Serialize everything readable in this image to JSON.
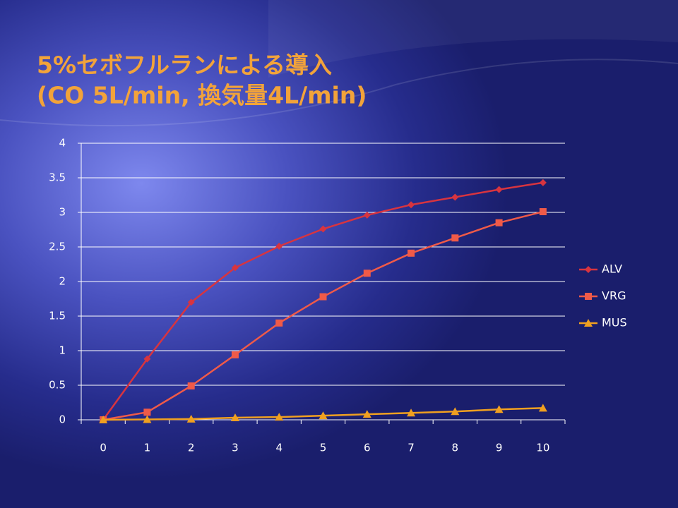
{
  "chart_data": {
    "type": "line",
    "title": [
      "5%セボフルランによる導入",
      "(CO 5L/min, 換気量4L/min)"
    ],
    "categories": [
      "0",
      "1",
      "2",
      "3",
      "4",
      "5",
      "6",
      "7",
      "8",
      "9",
      "10"
    ],
    "series": [
      {
        "name": "ALV",
        "color": "#d8343f",
        "marker": "diamond",
        "values": [
          0,
          0.88,
          1.7,
          2.2,
          2.51,
          2.76,
          2.96,
          3.11,
          3.22,
          3.33,
          3.43
        ]
      },
      {
        "name": "VRG",
        "color": "#f05a48",
        "marker": "square",
        "values": [
          0,
          0.11,
          0.49,
          0.94,
          1.4,
          1.78,
          2.12,
          2.41,
          2.63,
          2.85,
          3.01
        ]
      },
      {
        "name": "MUS",
        "color": "#f0a020",
        "marker": "triangle",
        "values": [
          0,
          0.005,
          0.012,
          0.03,
          0.04,
          0.06,
          0.08,
          0.1,
          0.12,
          0.15,
          0.17
        ]
      }
    ],
    "ylim": [
      0,
      4
    ],
    "yticks": [
      0,
      0.5,
      1,
      1.5,
      2,
      2.5,
      3,
      3.5,
      4
    ],
    "grid": true,
    "legend": "right"
  }
}
